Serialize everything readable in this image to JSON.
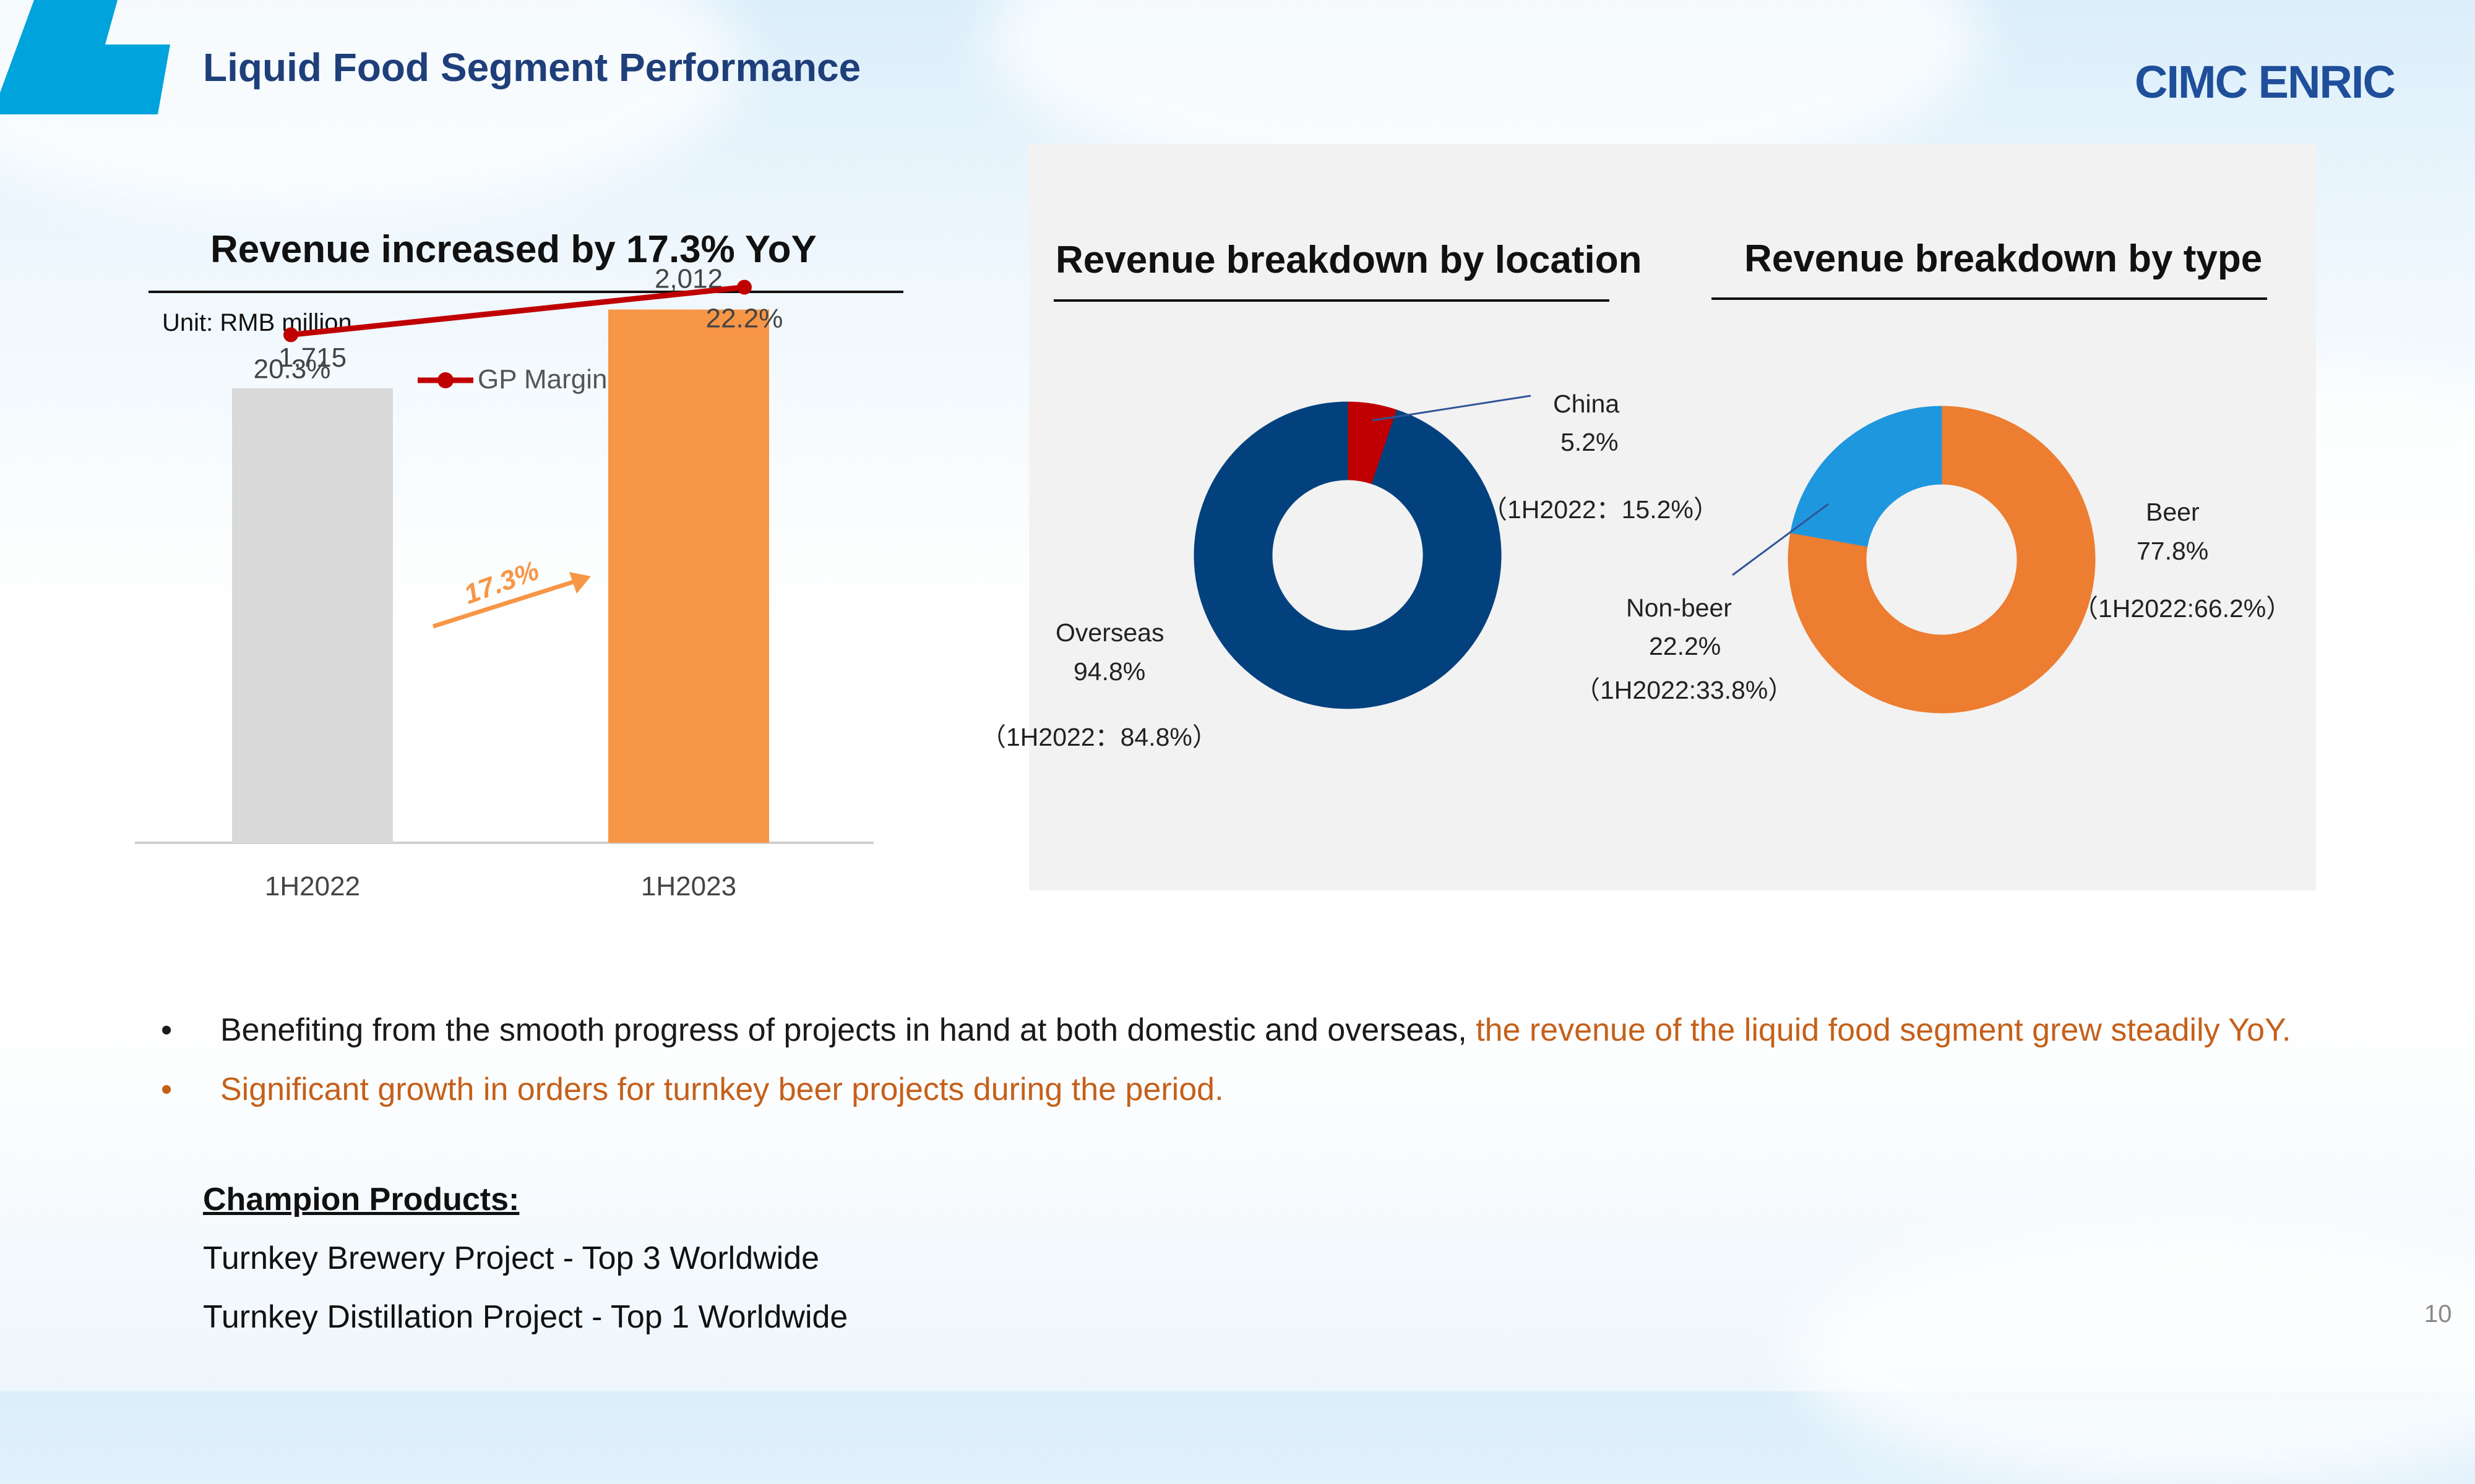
{
  "slide": {
    "title": "Liquid Food Segment Performance",
    "logo_text": "CIMC ENRIC",
    "page_number": "10"
  },
  "revenue_chart": {
    "title": "Revenue increased by 17.3% YoY",
    "unit": "Unit: RMB million",
    "growth_label": "17.3%"
  },
  "location_chart": {
    "title": "Revenue breakdown by location",
    "china": {
      "name": "China",
      "pct": "5.2%",
      "prior": "（1H2022：15.2%）"
    },
    "overseas": {
      "name": "Overseas",
      "pct": "94.8%",
      "prior": "（1H2022：84.8%）"
    }
  },
  "type_chart": {
    "title": "Revenue breakdown by type",
    "beer": {
      "name": "Beer",
      "pct": "77.8%",
      "prior": "（1H2022:66.2%）"
    },
    "nonbeer": {
      "name": "Non-beer",
      "pct": "22.2%",
      "prior": "（1H2022:33.8%）"
    }
  },
  "chart_data": [
    {
      "type": "bar",
      "title": "Revenue increased by 17.3% YoY",
      "categories": [
        "1H2022",
        "1H2023"
      ],
      "values": [
        1715,
        2012
      ],
      "value_labels": [
        "1,715",
        "2,012"
      ],
      "bar_colors": [
        "#d9d9d9",
        "#f79646"
      ],
      "ylim": [
        0,
        2200
      ],
      "overlay_line": {
        "name": "GP Margin",
        "values": [
          20.3,
          22.2
        ],
        "labels": [
          "20.3%",
          "22.2%"
        ],
        "color": "#c00000",
        "ylim": [
          0,
          23.3
        ]
      },
      "legend": "top"
    },
    {
      "type": "pie",
      "title": "Revenue breakdown by location",
      "labels": [
        "China",
        "Overseas"
      ],
      "values": [
        5.2,
        94.8
      ],
      "colors": [
        "#c00000",
        "#03417e"
      ]
    },
    {
      "type": "pie",
      "title": "Revenue breakdown by type",
      "labels": [
        "Beer",
        "Non-beer"
      ],
      "values": [
        77.8,
        22.2
      ],
      "colors": [
        "#ed7d31",
        "#1f97df"
      ]
    }
  ],
  "bullets": [
    {
      "text": "Benefiting from the smooth progress of projects in hand at both domestic and overseas, ",
      "highlight": "the revenue of the liquid food segment grew steadily YoY."
    },
    {
      "text": "",
      "highlight": "Significant growth in orders for turnkey beer projects during the period."
    }
  ],
  "champion": {
    "title": "Champion Products:",
    "items": [
      "Turnkey Brewery Project - Top 3 Worldwide",
      "Turnkey Distillation Project - Top 1 Worldwide"
    ]
  },
  "colors": {
    "title_blue": "#1f3f7a",
    "accent_blue": "#00a3dc",
    "highlight_orange": "#c5601a"
  }
}
